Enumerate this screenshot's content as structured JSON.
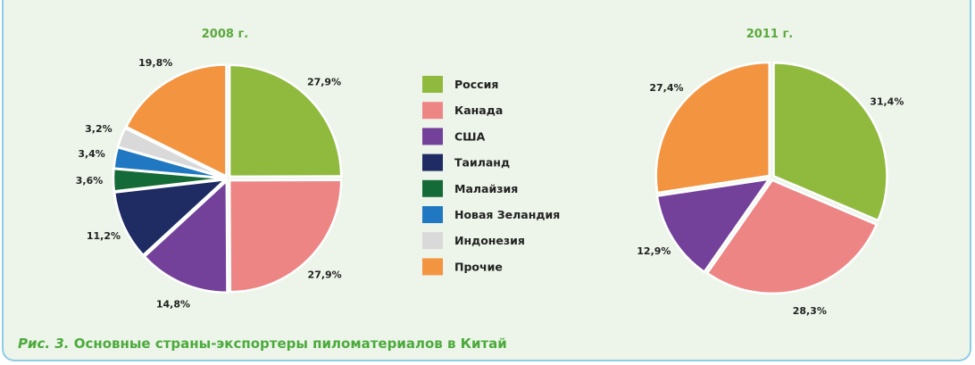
{
  "chart_data": [
    {
      "type": "pie",
      "title": "2008 г.",
      "slices": [
        {
          "name": "Россия",
          "value": 27.9,
          "label": "27,9%"
        },
        {
          "name": "Канада",
          "value": 27.9,
          "label": "27,9%"
        },
        {
          "name": "США",
          "value": 14.8,
          "label": "14,8%"
        },
        {
          "name": "Таиланд",
          "value": 11.2,
          "label": "11,2%"
        },
        {
          "name": "Малайзия",
          "value": 3.6,
          "label": "3,6%"
        },
        {
          "name": "Новая Зеландия",
          "value": 3.4,
          "label": "3,4%"
        },
        {
          "name": "Индонезия",
          "value": 3.2,
          "label": "3,2%"
        },
        {
          "name": "Прочие",
          "value": 19.8,
          "label": "19,8%"
        }
      ]
    },
    {
      "type": "pie",
      "title": "2011 г.",
      "slices": [
        {
          "name": "Россия",
          "value": 31.4,
          "label": "31,4%"
        },
        {
          "name": "Канада",
          "value": 28.3,
          "label": "28,3%"
        },
        {
          "name": "США",
          "value": 12.9,
          "label": "12,9%"
        },
        {
          "name": "Прочие",
          "value": 27.4,
          "label": "27,4%"
        }
      ]
    }
  ],
  "legend": {
    "placement": "center",
    "items": [
      {
        "name": "Россия",
        "color": "#8fba3e"
      },
      {
        "name": "Канада",
        "color": "#ee8585"
      },
      {
        "name": "США",
        "color": "#74419a"
      },
      {
        "name": "Таиланд",
        "color": "#1f2c63"
      },
      {
        "name": "Малайзия",
        "color": "#156b37"
      },
      {
        "name": "Новая Зеландия",
        "color": "#1f78c1"
      },
      {
        "name": "Индонезия",
        "color": "#d9d9d9"
      },
      {
        "name": "Прочие",
        "color": "#f39440"
      }
    ]
  },
  "caption": {
    "prefix": "Рис. 3.",
    "text": "Основные страны-экспортеры пиломатериалов в Китай"
  }
}
